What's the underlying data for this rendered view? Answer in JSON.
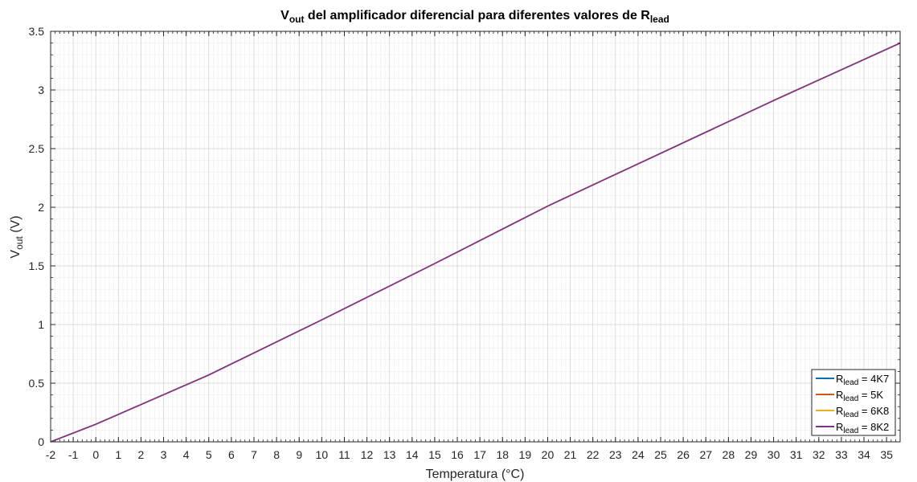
{
  "chart_data": {
    "type": "line",
    "title": {
      "main": "V",
      "main_sub": "out",
      "middle": " del amplificador diferencial para diferentes valores de R",
      "end_sub": "lead"
    },
    "xlabel": "Temperatura (°C)",
    "ylabel": {
      "main": "V",
      "sub": "out",
      "suffix": " (V)"
    },
    "xlim": [
      -2,
      35.6
    ],
    "ylim": [
      0,
      3.5
    ],
    "xticks": [
      -2,
      -1,
      0,
      1,
      2,
      3,
      4,
      5,
      6,
      7,
      8,
      9,
      10,
      11,
      12,
      13,
      14,
      15,
      16,
      17,
      18,
      19,
      20,
      21,
      22,
      23,
      24,
      25,
      26,
      27,
      28,
      29,
      30,
      31,
      32,
      33,
      34,
      35
    ],
    "yticks": [
      0,
      0.5,
      1,
      1.5,
      2,
      2.5,
      3,
      3.5
    ],
    "grid": true,
    "legend_position": "bottom-right",
    "series": [
      {
        "name": "R",
        "name_sub": "lead",
        "name_suffix": " = 4K7",
        "color": "#0072BD",
        "x": [
          -2,
          0,
          5,
          10,
          15,
          20,
          25,
          30,
          35.6
        ],
        "y": [
          0,
          0.15,
          0.57,
          1.04,
          1.52,
          2.01,
          2.46,
          2.91,
          3.4
        ]
      },
      {
        "name": "R",
        "name_sub": "lead",
        "name_suffix": " = 5K",
        "color": "#D95319",
        "x": [
          -2,
          0,
          5,
          10,
          15,
          20,
          25,
          30,
          35.6
        ],
        "y": [
          0,
          0.15,
          0.57,
          1.04,
          1.52,
          2.01,
          2.46,
          2.91,
          3.4
        ]
      },
      {
        "name": "R",
        "name_sub": "lead",
        "name_suffix": " = 6K8",
        "color": "#EDB120",
        "x": [
          -2,
          0,
          5,
          10,
          15,
          20,
          25,
          30,
          35.6
        ],
        "y": [
          0,
          0.15,
          0.57,
          1.04,
          1.52,
          2.01,
          2.46,
          2.91,
          3.4
        ]
      },
      {
        "name": "R",
        "name_sub": "lead",
        "name_suffix": " = 8K2",
        "color": "#7E2F8E",
        "x": [
          -2,
          0,
          5,
          10,
          15,
          20,
          25,
          30,
          35.6
        ],
        "y": [
          0,
          0.15,
          0.57,
          1.04,
          1.52,
          2.01,
          2.46,
          2.91,
          3.4
        ]
      }
    ]
  }
}
